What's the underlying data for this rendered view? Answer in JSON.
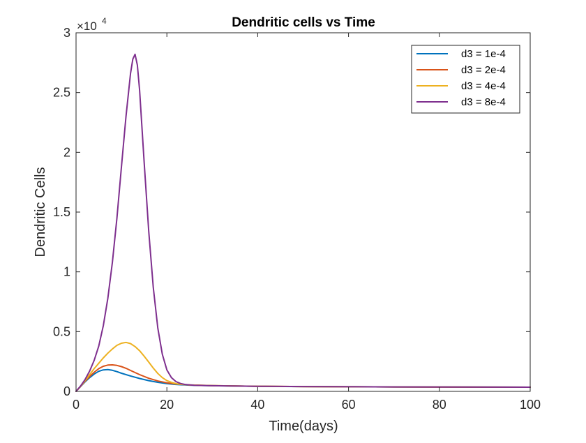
{
  "chart_data": {
    "type": "line",
    "title": "Dendritic cells vs Time",
    "xlabel": "Time(days)",
    "ylabel": "Dendritic Cells",
    "y_exponent_label": "×10",
    "y_exponent_power": "4",
    "y_scale_factor": 10000,
    "xlim": [
      0,
      100
    ],
    "ylim": [
      0,
      30000
    ],
    "x_ticks": [
      0,
      20,
      40,
      60,
      80,
      100
    ],
    "x_tick_labels": [
      "0",
      "20",
      "40",
      "60",
      "80",
      "100"
    ],
    "y_ticks": [
      0,
      5000,
      10000,
      15000,
      20000,
      25000,
      30000
    ],
    "y_tick_labels": [
      "0",
      "0.5",
      "1",
      "1.5",
      "2",
      "2.5",
      "3"
    ],
    "grid": false,
    "legend_position": "top-right",
    "series": [
      {
        "name": "d3 = 1e-4",
        "color": "#0072BD",
        "x": [
          0,
          1,
          2,
          3,
          4,
          5,
          6,
          7,
          8,
          9,
          10,
          12,
          14,
          16,
          18,
          20,
          22,
          25,
          30,
          40,
          50,
          60,
          70,
          80,
          90,
          100
        ],
        "y": [
          0,
          400,
          800,
          1150,
          1450,
          1680,
          1800,
          1820,
          1760,
          1650,
          1520,
          1290,
          1080,
          900,
          760,
          650,
          580,
          520,
          470,
          420,
          400,
          385,
          375,
          365,
          355,
          350
        ]
      },
      {
        "name": "d3 = 2e-4",
        "color": "#D95319",
        "x": [
          0,
          1,
          2,
          3,
          4,
          5,
          6,
          7,
          8,
          9,
          10,
          11,
          12,
          14,
          16,
          18,
          20,
          22,
          25,
          30,
          40,
          50,
          60,
          70,
          80,
          90,
          100
        ],
        "y": [
          0,
          420,
          850,
          1250,
          1600,
          1900,
          2100,
          2200,
          2220,
          2170,
          2070,
          1930,
          1750,
          1400,
          1100,
          870,
          720,
          620,
          540,
          480,
          425,
          400,
          385,
          375,
          365,
          355,
          350
        ]
      },
      {
        "name": "d3 = 4e-4",
        "color": "#EDB120",
        "x": [
          0,
          1,
          2,
          3,
          4,
          5,
          6,
          7,
          8,
          9,
          10,
          11,
          12,
          13,
          14,
          15,
          16,
          17,
          18,
          19,
          20,
          21,
          22,
          23,
          25,
          30,
          40,
          50,
          60,
          70,
          80,
          90,
          100
        ],
        "y": [
          0,
          420,
          900,
          1400,
          1900,
          2350,
          2800,
          3200,
          3550,
          3850,
          4030,
          4100,
          4000,
          3750,
          3400,
          2950,
          2450,
          1950,
          1500,
          1150,
          900,
          750,
          650,
          590,
          530,
          480,
          425,
          400,
          385,
          375,
          365,
          355,
          350
        ]
      },
      {
        "name": "d3 = 8e-4",
        "color": "#7E2F8E",
        "x": [
          0,
          1,
          2,
          3,
          4,
          5,
          6,
          7,
          8,
          9,
          10,
          11,
          12,
          12.5,
          13,
          13.5,
          14,
          15,
          16,
          17,
          18,
          19,
          20,
          21,
          22,
          23,
          24,
          26,
          30,
          40,
          50,
          60,
          70,
          80,
          90,
          100
        ],
        "y": [
          0,
          450,
          1000,
          1700,
          2600,
          3800,
          5500,
          7800,
          10800,
          14500,
          18800,
          23000,
          26600,
          27800,
          28200,
          27300,
          25200,
          19200,
          13400,
          8700,
          5300,
          3100,
          1800,
          1150,
          820,
          660,
          580,
          510,
          470,
          425,
          400,
          385,
          375,
          365,
          355,
          350
        ]
      }
    ]
  }
}
